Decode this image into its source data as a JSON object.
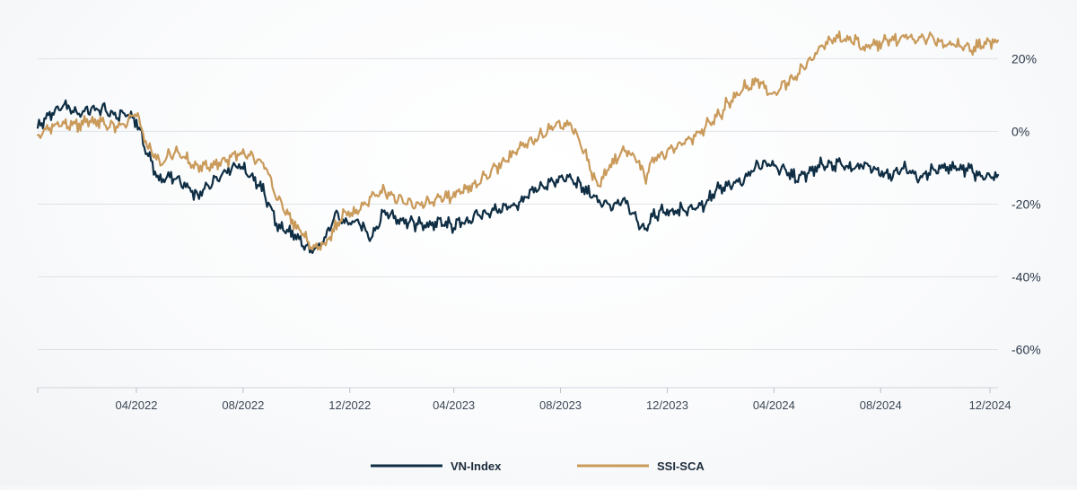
{
  "chart_data": {
    "type": "line",
    "title": "",
    "xlabel": "",
    "ylabel": "",
    "ylim": [
      -70,
      28
    ],
    "yticks": [
      20,
      0,
      -20,
      -40,
      -60
    ],
    "ytick_labels": [
      "20%",
      "0%",
      "-20%",
      "-40%",
      "-60%"
    ],
    "x_start": "2021-12",
    "x_end": "2024-12",
    "xticks": [
      {
        "month_index": 3.7,
        "label": "04/2022"
      },
      {
        "month_index": 7.7,
        "label": "08/2022"
      },
      {
        "month_index": 11.7,
        "label": "12/2022"
      },
      {
        "month_index": 15.6,
        "label": "04/2023"
      },
      {
        "month_index": 19.6,
        "label": "08/2023"
      },
      {
        "month_index": 23.6,
        "label": "12/2023"
      },
      {
        "month_index": 27.6,
        "label": "04/2024"
      },
      {
        "month_index": 31.6,
        "label": "08/2024"
      },
      {
        "month_index": 35.7,
        "label": "12/2024"
      }
    ],
    "grid": true,
    "legend_position": "bottom-center",
    "x_month_index": [
      0,
      0.5,
      1,
      1.5,
      2,
      2.5,
      3,
      3.3,
      3.7,
      4.1,
      4.6,
      5,
      5.5,
      6,
      6.5,
      7,
      7.5,
      8,
      8.5,
      9,
      9.5,
      9.9,
      10.3,
      10.8,
      11.2,
      11.5,
      12,
      12.5,
      13,
      13.5,
      14,
      14.5,
      15,
      15.5,
      16,
      16.5,
      17,
      17.5,
      18,
      18.5,
      19,
      19.5,
      20,
      20.5,
      21,
      21.5,
      22,
      22.5,
      22.8,
      23,
      23.5,
      24,
      24.5,
      25,
      25.5,
      26,
      26.5,
      27,
      27.5,
      28,
      28.5,
      29,
      29.5,
      30,
      30.5,
      31,
      31.5,
      32,
      32.5,
      33,
      33.5,
      34,
      34.5,
      35,
      35.5,
      36
    ],
    "series": [
      {
        "name": "VN-Index",
        "color": "#0f2e44",
        "values": [
          1,
          5,
          7,
          5,
          6,
          6,
          4,
          5,
          3,
          -6,
          -14,
          -12,
          -15,
          -18,
          -14,
          -11,
          -9,
          -12,
          -17,
          -26,
          -28,
          -31,
          -33,
          -29,
          -23,
          -25,
          -25,
          -29,
          -22,
          -24,
          -25,
          -26,
          -25,
          -26,
          -25,
          -23,
          -22,
          -21,
          -20,
          -17,
          -15,
          -13,
          -13,
          -16,
          -19,
          -21,
          -19,
          -25,
          -27,
          -23,
          -22,
          -22,
          -21,
          -20,
          -16,
          -15,
          -13,
          -9,
          -9,
          -11,
          -13,
          -11,
          -9,
          -9,
          -10,
          -9,
          -11,
          -12,
          -10,
          -13,
          -11,
          -10,
          -10,
          -11,
          -13,
          -12
        ]
      },
      {
        "name": "SSI-SCA",
        "color": "#c99a5a",
        "values": [
          -1,
          1,
          2,
          2,
          3,
          2,
          1,
          2,
          5,
          -4,
          -9,
          -6,
          -7,
          -10,
          -9,
          -8,
          -6,
          -7,
          -9,
          -19,
          -24,
          -28,
          -32,
          -31,
          -26,
          -23,
          -22,
          -18,
          -16,
          -19,
          -20,
          -20,
          -19,
          -18,
          -16,
          -14,
          -11,
          -8,
          -5,
          -3,
          0,
          2,
          2,
          -6,
          -15,
          -9,
          -5,
          -8,
          -13,
          -8,
          -6,
          -4,
          -2,
          1,
          4,
          9,
          12,
          14,
          10,
          13,
          16,
          20,
          24,
          26,
          25,
          23,
          24,
          25,
          26,
          25,
          26,
          24,
          24,
          23,
          24,
          25
        ]
      }
    ]
  }
}
